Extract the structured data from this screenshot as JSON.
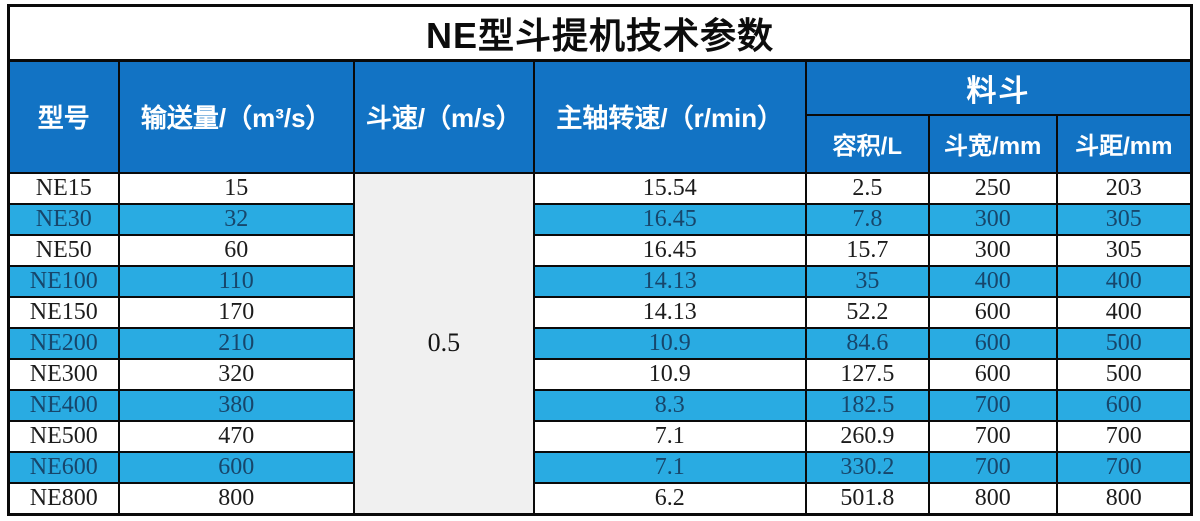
{
  "title": "NE型斗提机技术参数",
  "colors": {
    "header_blue": "#1273c4",
    "row_blue": "#29abe2",
    "row_blue_text": "#17466b",
    "speed_cell_bg": "#f0f0f0",
    "border_black": "#0a0a0a"
  },
  "table": {
    "columns": {
      "model": "型号",
      "capacity": "输送量/（m³/s）",
      "bucket_speed": "斗速/（m/s）",
      "shaft_speed": "主轴转速/（r/min）"
    },
    "bucket_group": {
      "label": "料斗",
      "sub": {
        "volume": "容积/L",
        "width": "斗宽/mm",
        "pitch": "斗距/mm"
      }
    },
    "bucket_speed_value": "0.5",
    "rows": [
      {
        "model": "NE15",
        "capacity": "15",
        "shaft_speed": "15.54",
        "volume": "2.5",
        "width": "250",
        "pitch": "203"
      },
      {
        "model": "NE30",
        "capacity": "32",
        "shaft_speed": "16.45",
        "volume": "7.8",
        "width": "300",
        "pitch": "305"
      },
      {
        "model": "NE50",
        "capacity": "60",
        "shaft_speed": "16.45",
        "volume": "15.7",
        "width": "300",
        "pitch": "305"
      },
      {
        "model": "NE100",
        "capacity": "110",
        "shaft_speed": "14.13",
        "volume": "35",
        "width": "400",
        "pitch": "400"
      },
      {
        "model": "NE150",
        "capacity": "170",
        "shaft_speed": "14.13",
        "volume": "52.2",
        "width": "600",
        "pitch": "400"
      },
      {
        "model": "NE200",
        "capacity": "210",
        "shaft_speed": "10.9",
        "volume": "84.6",
        "width": "600",
        "pitch": "500"
      },
      {
        "model": "NE300",
        "capacity": "320",
        "shaft_speed": "10.9",
        "volume": "127.5",
        "width": "600",
        "pitch": "500"
      },
      {
        "model": "NE400",
        "capacity": "380",
        "shaft_speed": "8.3",
        "volume": "182.5",
        "width": "700",
        "pitch": "600"
      },
      {
        "model": "NE500",
        "capacity": "470",
        "shaft_speed": "7.1",
        "volume": "260.9",
        "width": "700",
        "pitch": "700"
      },
      {
        "model": "NE600",
        "capacity": "600",
        "shaft_speed": "7.1",
        "volume": "330.2",
        "width": "700",
        "pitch": "700"
      },
      {
        "model": "NE800",
        "capacity": "800",
        "shaft_speed": "6.2",
        "volume": "501.8",
        "width": "800",
        "pitch": "800"
      }
    ]
  },
  "chart_data": {
    "type": "table",
    "title": "NE型斗提机技术参数",
    "columns": [
      "型号",
      "输送量/（m³/s）",
      "斗速/（m/s）",
      "主轴转速/（r/min）",
      "容积/L",
      "斗宽/mm",
      "斗距/mm"
    ],
    "rows": [
      [
        "NE15",
        "15",
        "0.5",
        "15.54",
        "2.5",
        "250",
        "203"
      ],
      [
        "NE30",
        "32",
        "0.5",
        "16.45",
        "7.8",
        "300",
        "305"
      ],
      [
        "NE50",
        "60",
        "0.5",
        "16.45",
        "15.7",
        "300",
        "305"
      ],
      [
        "NE100",
        "110",
        "0.5",
        "14.13",
        "35",
        "400",
        "400"
      ],
      [
        "NE150",
        "170",
        "0.5",
        "14.13",
        "52.2",
        "600",
        "400"
      ],
      [
        "NE200",
        "210",
        "0.5",
        "10.9",
        "84.6",
        "600",
        "500"
      ],
      [
        "NE300",
        "320",
        "0.5",
        "10.9",
        "127.5",
        "600",
        "500"
      ],
      [
        "NE400",
        "380",
        "0.5",
        "8.3",
        "182.5",
        "700",
        "600"
      ],
      [
        "NE500",
        "470",
        "0.5",
        "7.1",
        "260.9",
        "700",
        "700"
      ],
      [
        "NE600",
        "600",
        "0.5",
        "7.1",
        "330.2",
        "700",
        "700"
      ],
      [
        "NE800",
        "800",
        "0.5",
        "6.2",
        "501.8",
        "800",
        "800"
      ]
    ]
  }
}
